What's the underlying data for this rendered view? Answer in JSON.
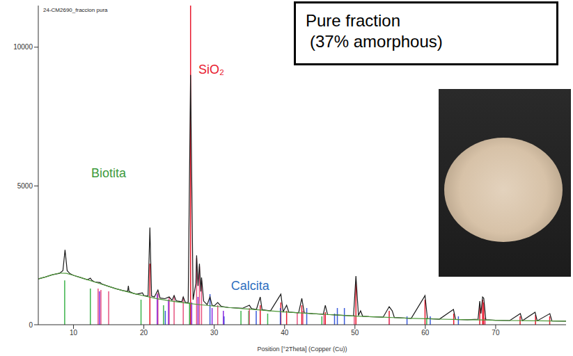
{
  "chart_data": {
    "type": "line",
    "title": "24-CM2690_fraccion pura",
    "x_label": "Position [°2Theta] (Copper (Cu))",
    "inset_text": [
      "Pure fraction",
      "(37% amorphous)"
    ],
    "xlim": [
      5,
      80
    ],
    "xticks": [
      10,
      20,
      30,
      40,
      50,
      60,
      70
    ],
    "ylim": [
      0,
      11500
    ],
    "yticks": [
      0,
      5000,
      10000
    ],
    "grid": false,
    "annotations": [
      {
        "text": "SiO₂",
        "x": 29.6,
        "y": 9200,
        "color": "#e8182c"
      },
      {
        "text": "Biotita",
        "x": 15,
        "y": 5480,
        "color": "#3c9a3c"
      },
      {
        "text": "Calcita",
        "x": 35.1,
        "y": 1420,
        "color": "#2f6fbf"
      }
    ],
    "series": [
      {
        "type": "line",
        "color": "#1a1a1a",
        "x": [
          5,
          6,
          7,
          8,
          8.5,
          8.8,
          9.1,
          9.5,
          10,
          11,
          12,
          12.4,
          12.6,
          13,
          13.8,
          14,
          15,
          16,
          17,
          17.7,
          17.8,
          17.9,
          18.5,
          19,
          19.8,
          20,
          20.6,
          20.86,
          21.1,
          21.5,
          22,
          22.3,
          23,
          23.6,
          24,
          24.3,
          24.6,
          25.4,
          25.6,
          25.9,
          26.3,
          26.64,
          27.0,
          27.4,
          27.5,
          27.7,
          27.9,
          28.1,
          28.2,
          28.5,
          29,
          29.4,
          29.7,
          30,
          30.5,
          31,
          32,
          34,
          35,
          35.3,
          36,
          36.54,
          36.8,
          38,
          39.47,
          39.8,
          40.29,
          40.6,
          42,
          42.45,
          42.8,
          44,
          45.5,
          45.79,
          46.1,
          48,
          49.8,
          50.14,
          50.5,
          50.8,
          51.1,
          52,
          54,
          54.87,
          55.3,
          55.6,
          58,
          59.96,
          60.3,
          62,
          64,
          64.3,
          66,
          67.5,
          67.74,
          67.9,
          68.14,
          68.31,
          68.6,
          70,
          72,
          73.5,
          73.8,
          75.6,
          75.9,
          77.7,
          78,
          80
        ],
        "values": [
          1650,
          1720,
          1800,
          1850,
          1950,
          2700,
          1950,
          1840,
          1780,
          1700,
          1620,
          1680,
          1600,
          1540,
          1520,
          1470,
          1380,
          1300,
          1230,
          1200,
          1400,
          1200,
          1130,
          1100,
          1150,
          1050,
          1030,
          3500,
          1030,
          1000,
          1250,
          960,
          940,
          1000,
          880,
          1050,
          860,
          830,
          1000,
          800,
          800,
          9000,
          900,
          1500,
          2500,
          1400,
          2200,
          1200,
          1700,
          850,
          720,
          1000,
          700,
          680,
          800,
          660,
          620,
          590,
          700,
          580,
          550,
          1000,
          540,
          500,
          1100,
          470,
          700,
          455,
          430,
          950,
          425,
          400,
          380,
          700,
          370,
          340,
          320,
          1750,
          330,
          500,
          305,
          290,
          270,
          650,
          500,
          260,
          230,
          1050,
          220,
          200,
          550,
          190,
          180,
          200,
          850,
          400,
          1000,
          950,
          180,
          160,
          150,
          400,
          145,
          450,
          140,
          400,
          135,
          130
        ]
      },
      {
        "type": "line",
        "color": "#4f9a3a",
        "x": [
          5,
          6,
          7,
          8,
          9,
          10,
          11,
          12,
          13,
          14,
          15,
          16,
          17,
          18,
          19,
          20,
          22,
          24,
          26,
          28,
          30,
          32,
          34,
          36,
          38,
          40,
          42,
          44,
          46,
          48,
          50,
          52,
          54,
          56,
          58,
          60,
          62,
          64,
          66,
          68,
          70,
          72,
          74,
          76,
          78,
          80
        ],
        "values": [
          1650,
          1720,
          1800,
          1860,
          1850,
          1780,
          1700,
          1620,
          1540,
          1460,
          1380,
          1300,
          1230,
          1160,
          1100,
          1040,
          930,
          850,
          780,
          720,
          670,
          620,
          580,
          540,
          500,
          460,
          430,
          400,
          370,
          340,
          310,
          290,
          270,
          250,
          230,
          215,
          200,
          190,
          180,
          170,
          160,
          150,
          145,
          140,
          135,
          130
        ]
      },
      {
        "type": "stick",
        "color": "#e8182c",
        "x": [
          20.86,
          26.64,
          36.54,
          39.47,
          40.29,
          42.45,
          45.79,
          50.14,
          54.87,
          59.96,
          64.04,
          67.74,
          68.14,
          68.31,
          73.47,
          75.66,
          77.68
        ],
        "values": [
          2200,
          11500,
          700,
          800,
          500,
          700,
          450,
          1500,
          500,
          900,
          400,
          650,
          900,
          800,
          300,
          350,
          300
        ]
      },
      {
        "type": "stick",
        "color": "#3cb44b",
        "x": [
          8.75,
          12.4,
          19.6,
          22.8,
          26.5,
          33.8,
          34.9,
          37.6,
          45.3,
          60.2
        ],
        "values": [
          1600,
          1300,
          900,
          700,
          800,
          500,
          500,
          400,
          300,
          250
        ]
      },
      {
        "type": "stick",
        "color": "#3b5bdb",
        "x": [
          23.05,
          29.4,
          31.4,
          35.97,
          39.4,
          43.15,
          47.1,
          47.5,
          48.5,
          57.4,
          60.7,
          64.7
        ],
        "values": [
          500,
          1100,
          300,
          500,
          600,
          600,
          400,
          600,
          600,
          300,
          300,
          300
        ]
      },
      {
        "type": "stick",
        "color": "#e75480",
        "x": [
          13.5,
          13.9,
          15.0,
          22.0,
          23.6,
          24.3,
          25.6,
          27.5,
          27.9,
          28.2,
          30.5,
          35.0,
          41.8,
          42.6,
          45.6,
          49.9,
          54.9,
          68.5
        ],
        "values": [
          1300,
          1250,
          1200,
          1150,
          1000,
          1050,
          1000,
          2400,
          2100,
          1600,
          700,
          600,
          450,
          500,
          400,
          350,
          300,
          250
        ]
      },
      {
        "type": "stick",
        "color": "#8a2be2",
        "x": [
          13.7,
          21.9,
          23.5,
          26.8,
          27.7,
          29.7,
          31.3
        ],
        "values": [
          1200,
          1100,
          900,
          800,
          1000,
          600,
          500
        ]
      }
    ]
  }
}
